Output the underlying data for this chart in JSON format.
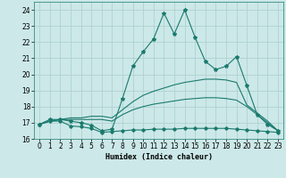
{
  "xlabel": "Humidex (Indice chaleur)",
  "background_color": "#cce8e8",
  "line_color": "#1a7a6e",
  "grid_color": "#aacece",
  "x": [
    0,
    1,
    2,
    3,
    4,
    5,
    6,
    7,
    8,
    9,
    10,
    11,
    12,
    13,
    14,
    15,
    16,
    17,
    18,
    19,
    20,
    21,
    22,
    23
  ],
  "line_max": [
    16.9,
    17.2,
    17.2,
    17.1,
    17.0,
    16.85,
    16.5,
    16.6,
    18.5,
    20.5,
    21.4,
    22.2,
    23.8,
    22.5,
    24.0,
    22.3,
    20.8,
    20.3,
    20.5,
    21.1,
    19.3,
    17.5,
    16.9,
    16.5
  ],
  "line_q3": [
    16.9,
    17.1,
    17.2,
    17.3,
    17.3,
    17.4,
    17.4,
    17.3,
    17.8,
    18.3,
    18.7,
    18.95,
    19.15,
    19.35,
    19.5,
    19.6,
    19.7,
    19.7,
    19.65,
    19.5,
    18.1,
    17.6,
    17.1,
    16.5
  ],
  "line_med": [
    16.9,
    17.1,
    17.2,
    17.2,
    17.2,
    17.2,
    17.2,
    17.1,
    17.5,
    17.8,
    18.0,
    18.15,
    18.25,
    18.35,
    18.45,
    18.5,
    18.55,
    18.55,
    18.5,
    18.4,
    18.0,
    17.5,
    17.0,
    16.5
  ],
  "line_min": [
    16.9,
    17.1,
    17.1,
    16.8,
    16.75,
    16.65,
    16.4,
    16.45,
    16.5,
    16.55,
    16.55,
    16.6,
    16.6,
    16.6,
    16.65,
    16.65,
    16.65,
    16.65,
    16.65,
    16.6,
    16.55,
    16.5,
    16.45,
    16.4
  ],
  "ylim": [
    16,
    24.5
  ],
  "xlim": [
    -0.5,
    23.5
  ],
  "yticks": [
    16,
    17,
    18,
    19,
    20,
    21,
    22,
    23,
    24
  ],
  "xticks": [
    0,
    1,
    2,
    3,
    4,
    5,
    6,
    7,
    8,
    9,
    10,
    11,
    12,
    13,
    14,
    15,
    16,
    17,
    18,
    19,
    20,
    21,
    22,
    23
  ],
  "label_fontsize": 6,
  "tick_fontsize": 5.5
}
